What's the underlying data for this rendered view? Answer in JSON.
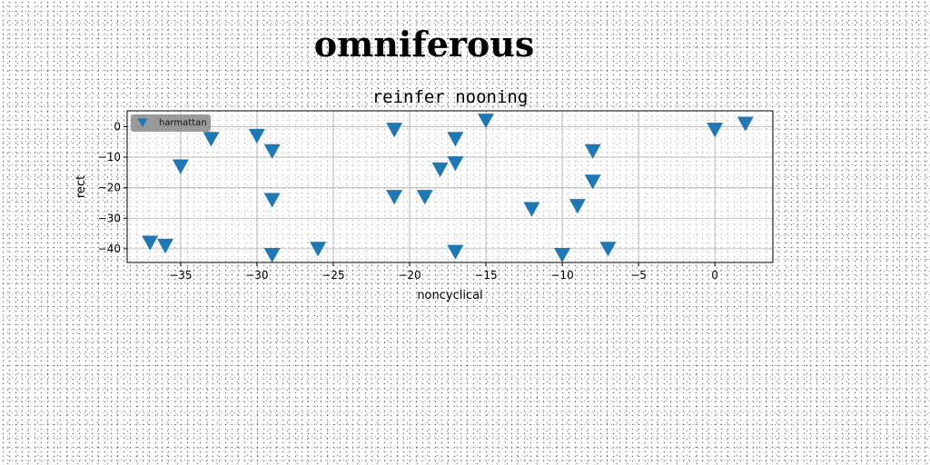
{
  "figure": {
    "suptitle": "omniferous"
  },
  "chart_data": {
    "type": "scatter",
    "title": "reinfer nooning",
    "xlabel": "noncyclical",
    "ylabel": "rect",
    "xlim": [
      -38.5,
      3.8
    ],
    "ylim": [
      -44.5,
      5.2
    ],
    "xticks": [
      -35,
      -30,
      -25,
      -20,
      -15,
      -10,
      -5,
      0
    ],
    "yticks": [
      0,
      -10,
      -20,
      -30,
      -40
    ],
    "grid": true,
    "legend": {
      "placement": "top-left"
    },
    "marker": "triangle-down",
    "series": [
      {
        "name": "harmattan",
        "color": "#1f77b4",
        "points": [
          {
            "x": -37,
            "y": -38
          },
          {
            "x": -36,
            "y": -39
          },
          {
            "x": -35,
            "y": -13
          },
          {
            "x": -33,
            "y": -4
          },
          {
            "x": -30,
            "y": -3
          },
          {
            "x": -29,
            "y": -8
          },
          {
            "x": -29,
            "y": -24
          },
          {
            "x": -29,
            "y": -42
          },
          {
            "x": -26,
            "y": -40
          },
          {
            "x": -21,
            "y": -1
          },
          {
            "x": -21,
            "y": -23
          },
          {
            "x": -19,
            "y": -23
          },
          {
            "x": -18,
            "y": -14
          },
          {
            "x": -17,
            "y": -4
          },
          {
            "x": -17,
            "y": -12
          },
          {
            "x": -17,
            "y": -41
          },
          {
            "x": -15,
            "y": 2
          },
          {
            "x": -12,
            "y": -27
          },
          {
            "x": -10,
            "y": -42
          },
          {
            "x": -9,
            "y": -26
          },
          {
            "x": -8,
            "y": -8
          },
          {
            "x": -8,
            "y": -18
          },
          {
            "x": -7,
            "y": -40
          },
          {
            "x": 0,
            "y": -1
          },
          {
            "x": 2,
            "y": 1
          }
        ]
      }
    ]
  }
}
